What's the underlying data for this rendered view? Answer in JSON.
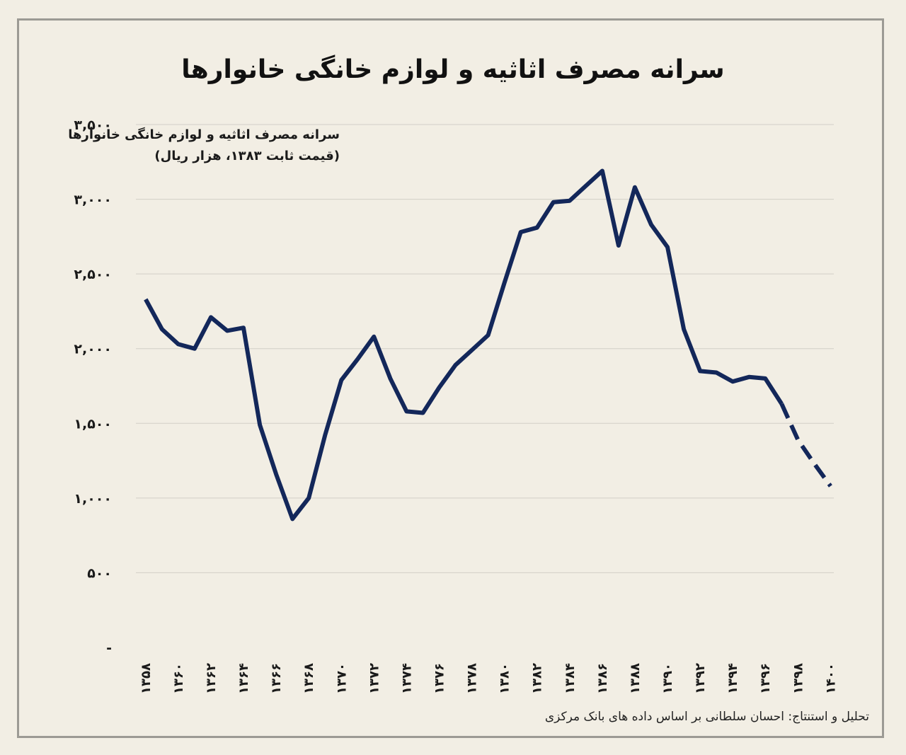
{
  "page": {
    "title": "سرانه مصرف اثاثیه و لوازم خانگی خانوارها",
    "source_note": "تحلیل و استنتاج: احسان سلطانی بر اساس داده های بانک مرکزی"
  },
  "chart_data": {
    "type": "line",
    "title": "سرانه مصرف اثاثیه و لوازم خانگی خانوارها",
    "inner_label_line1": "سرانه مصرف اثاثیه و لوازم خانگی خانوارها",
    "inner_label_line2": "(قیمت ثابت ۱۳۸۳، هزار ریال)",
    "xlabel": "",
    "ylabel": "",
    "ylim": [
      0,
      3500
    ],
    "grid": true,
    "line_color": "#13275a",
    "y_ticks": [
      {
        "value": 0,
        "label": "-"
      },
      {
        "value": 500,
        "label": "۵۰۰"
      },
      {
        "value": 1000,
        "label": "۱,۰۰۰"
      },
      {
        "value": 1500,
        "label": "۱,۵۰۰"
      },
      {
        "value": 2000,
        "label": "۲,۰۰۰"
      },
      {
        "value": 2500,
        "label": "۲,۵۰۰"
      },
      {
        "value": 3000,
        "label": "۳,۰۰۰"
      },
      {
        "value": 3500,
        "label": "۳,۵۰۰"
      }
    ],
    "x_ticks": [
      {
        "year": 1358,
        "label": "۱۳۵۸"
      },
      {
        "year": 1360,
        "label": "۱۳۶۰"
      },
      {
        "year": 1362,
        "label": "۱۳۶۲"
      },
      {
        "year": 1364,
        "label": "۱۳۶۴"
      },
      {
        "year": 1366,
        "label": "۱۳۶۶"
      },
      {
        "year": 1368,
        "label": "۱۳۶۸"
      },
      {
        "year": 1370,
        "label": "۱۳۷۰"
      },
      {
        "year": 1372,
        "label": "۱۳۷۲"
      },
      {
        "year": 1374,
        "label": "۱۳۷۴"
      },
      {
        "year": 1376,
        "label": "۱۳۷۶"
      },
      {
        "year": 1378,
        "label": "۱۳۷۸"
      },
      {
        "year": 1380,
        "label": "۱۳۸۰"
      },
      {
        "year": 1382,
        "label": "۱۳۸۲"
      },
      {
        "year": 1384,
        "label": "۱۳۸۴"
      },
      {
        "year": 1386,
        "label": "۱۳۸۶"
      },
      {
        "year": 1388,
        "label": "۱۳۸۸"
      },
      {
        "year": 1390,
        "label": "۱۳۹۰"
      },
      {
        "year": 1392,
        "label": "۱۳۹۲"
      },
      {
        "year": 1394,
        "label": "۱۳۹۴"
      },
      {
        "year": 1396,
        "label": "۱۳۹۶"
      },
      {
        "year": 1398,
        "label": "۱۳۹۸"
      },
      {
        "year": 1400,
        "label": "۱۴۰۰"
      }
    ],
    "series": [
      {
        "x": [
          1358,
          1359,
          1360,
          1361,
          1362,
          1363,
          1364,
          1365,
          1366,
          1367,
          1368,
          1369,
          1370,
          1371,
          1372,
          1373,
          1374,
          1375,
          1376,
          1377,
          1378,
          1379,
          1380,
          1381,
          1382,
          1383,
          1384,
          1385,
          1386,
          1387,
          1388,
          1389,
          1390,
          1391,
          1392,
          1393,
          1394,
          1395,
          1396,
          1397
        ],
        "values": [
          2330,
          2130,
          2030,
          2000,
          2210,
          2120,
          2140,
          1490,
          1160,
          860,
          1000,
          1420,
          1790,
          1930,
          2080,
          1800,
          1580,
          1570,
          1740,
          1890,
          1990,
          2090,
          2440,
          2780,
          2810,
          2980,
          2990,
          3090,
          3190,
          2690,
          3080,
          2830,
          2680,
          2130,
          1850,
          1840,
          1780,
          1810,
          1800,
          1630
        ]
      },
      {
        "x": [
          1397,
          1398,
          1399,
          1400
        ],
        "values": [
          1630,
          1390,
          1230,
          1080
        ],
        "dashed": true
      }
    ]
  }
}
